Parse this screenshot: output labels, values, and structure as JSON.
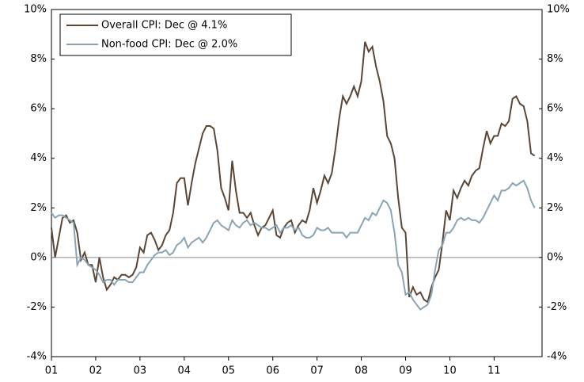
{
  "chart_data": {
    "type": "line",
    "categories": [
      "01",
      null,
      null,
      null,
      null,
      null,
      null,
      null,
      null,
      null,
      null,
      null,
      "02",
      null,
      null,
      null,
      null,
      null,
      null,
      null,
      null,
      null,
      null,
      null,
      "03",
      null,
      null,
      null,
      null,
      null,
      null,
      null,
      null,
      null,
      null,
      null,
      "04",
      null,
      null,
      null,
      null,
      null,
      null,
      null,
      null,
      null,
      null,
      null,
      "05",
      null,
      null,
      null,
      null,
      null,
      null,
      null,
      null,
      null,
      null,
      null,
      "06",
      null,
      null,
      null,
      null,
      null,
      null,
      null,
      null,
      null,
      null,
      null,
      "07",
      null,
      null,
      null,
      null,
      null,
      null,
      null,
      null,
      null,
      null,
      null,
      "08",
      null,
      null,
      null,
      null,
      null,
      null,
      null,
      null,
      null,
      null,
      null,
      "09",
      null,
      null,
      null,
      null,
      null,
      null,
      null,
      null,
      null,
      null,
      null,
      "10",
      null,
      null,
      null,
      null,
      null,
      null,
      null,
      null,
      null,
      null,
      null,
      "11",
      null,
      null,
      null,
      null,
      null,
      null,
      null,
      null,
      null,
      null,
      null
    ],
    "series": [
      {
        "name": "Overall CPI: Dec @ 4.1%",
        "color": "#5b4636",
        "values": [
          1.2,
          0.0,
          0.8,
          1.6,
          1.7,
          1.4,
          1.5,
          1.0,
          -0.1,
          0.2,
          -0.3,
          -0.3,
          -1.0,
          0.0,
          -0.8,
          -1.3,
          -1.1,
          -0.8,
          -0.9,
          -0.7,
          -0.7,
          -0.8,
          -0.7,
          -0.4,
          0.4,
          0.2,
          0.9,
          1.0,
          0.7,
          0.3,
          0.5,
          0.9,
          1.1,
          1.8,
          3.0,
          3.2,
          3.2,
          2.1,
          3.0,
          3.8,
          4.4,
          5.0,
          5.3,
          5.3,
          5.2,
          4.3,
          2.8,
          2.4,
          1.9,
          3.9,
          2.7,
          1.8,
          1.8,
          1.6,
          1.8,
          1.3,
          0.9,
          1.2,
          1.3,
          1.6,
          1.9,
          0.9,
          0.8,
          1.2,
          1.4,
          1.5,
          1.0,
          1.3,
          1.5,
          1.4,
          1.9,
          2.8,
          2.2,
          2.7,
          3.3,
          3.0,
          3.4,
          4.4,
          5.6,
          6.5,
          6.2,
          6.5,
          6.9,
          6.5,
          7.1,
          8.7,
          8.3,
          8.5,
          7.7,
          7.1,
          6.3,
          4.9,
          4.6,
          4.0,
          2.4,
          1.2,
          1.0,
          -1.6,
          -1.2,
          -1.5,
          -1.4,
          -1.7,
          -1.8,
          -1.2,
          -0.8,
          -0.5,
          0.6,
          1.9,
          1.5,
          2.7,
          2.4,
          2.8,
          3.1,
          2.9,
          3.3,
          3.5,
          3.6,
          4.4,
          5.1,
          4.6,
          4.9,
          4.9,
          5.4,
          5.3,
          5.5,
          6.4,
          6.5,
          6.2,
          6.1,
          5.5,
          4.2,
          4.1
        ]
      },
      {
        "name": "Non-food CPI: Dec @ 2.0%",
        "color": "#8aa4b3",
        "values": [
          1.8,
          1.6,
          1.7,
          1.7,
          1.6,
          1.5,
          1.4,
          -0.3,
          0.0,
          -0.1,
          -0.3,
          -0.4,
          -0.5,
          -0.7,
          -1.0,
          -0.9,
          -0.9,
          -1.1,
          -0.9,
          -0.9,
          -0.9,
          -1.0,
          -1.0,
          -0.8,
          -0.6,
          -0.6,
          -0.3,
          -0.1,
          0.1,
          0.2,
          0.2,
          0.3,
          0.1,
          0.2,
          0.5,
          0.6,
          0.8,
          0.4,
          0.6,
          0.7,
          0.8,
          0.6,
          0.8,
          1.1,
          1.4,
          1.5,
          1.3,
          1.2,
          1.1,
          1.5,
          1.3,
          1.2,
          1.4,
          1.5,
          1.3,
          1.4,
          1.3,
          1.2,
          1.2,
          1.1,
          1.2,
          1.3,
          1.0,
          1.2,
          1.2,
          1.3,
          1.1,
          1.2,
          0.9,
          0.8,
          0.8,
          0.9,
          1.2,
          1.1,
          1.1,
          1.2,
          1.0,
          1.0,
          1.0,
          1.0,
          0.8,
          1.0,
          1.0,
          1.0,
          1.3,
          1.6,
          1.5,
          1.8,
          1.7,
          2.0,
          2.3,
          2.2,
          1.9,
          1.0,
          -0.3,
          -0.6,
          -1.5,
          -1.4,
          -1.7,
          -1.9,
          -2.1,
          -2.0,
          -1.9,
          -1.5,
          -0.5,
          0.3,
          0.5,
          1.0,
          1.0,
          1.2,
          1.5,
          1.6,
          1.5,
          1.6,
          1.5,
          1.5,
          1.4,
          1.6,
          1.9,
          2.2,
          2.5,
          2.3,
          2.7,
          2.7,
          2.8,
          3.0,
          2.9,
          3.0,
          3.1,
          2.8,
          2.3,
          2.0
        ]
      }
    ],
    "ylim": [
      -4,
      10
    ],
    "yticks": [
      {
        "value": -4,
        "label": "-4%"
      },
      {
        "value": -2,
        "label": "-2%"
      },
      {
        "value": 0,
        "label": "0%"
      },
      {
        "value": 2,
        "label": "2%"
      },
      {
        "value": 4,
        "label": "4%"
      },
      {
        "value": 6,
        "label": "6%"
      },
      {
        "value": 8,
        "label": "8%"
      },
      {
        "value": 10,
        "label": "10%"
      }
    ],
    "y2lim": [
      -4,
      10
    ],
    "y2ticks": [
      {
        "value": -4,
        "label": "-4%"
      },
      {
        "value": -2,
        "label": "-2%"
      },
      {
        "value": 0,
        "label": "0%"
      },
      {
        "value": 2,
        "label": "2%"
      },
      {
        "value": 4,
        "label": "4%"
      },
      {
        "value": 6,
        "label": "6%"
      },
      {
        "value": 8,
        "label": "8%"
      },
      {
        "value": 10,
        "label": "10%"
      }
    ],
    "grid": false,
    "legend": "upper-left"
  }
}
